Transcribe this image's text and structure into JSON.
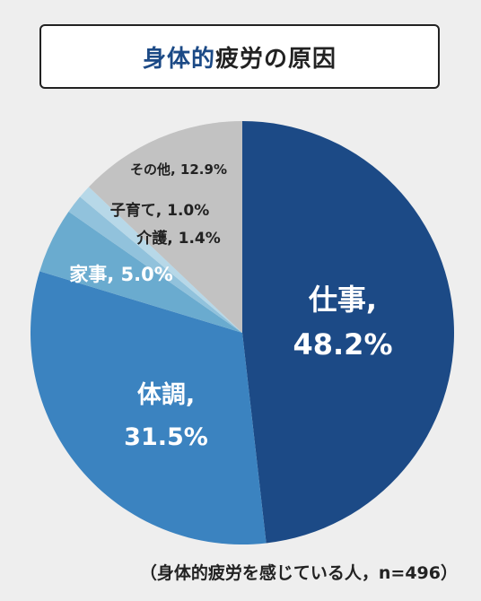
{
  "title": {
    "accent": "身体的",
    "rest": "疲労の原因"
  },
  "footnote": "（身体的疲労を感じている人，n=496）",
  "chart_data": {
    "type": "pie",
    "title": "身体的疲労の原因",
    "unit": "%",
    "start": "12 o'clock",
    "direction": "clockwise",
    "slices": [
      {
        "name": "仕事",
        "value": 48.2,
        "color": "#1c4a86",
        "label_lines": [
          "仕事,",
          "48.2%"
        ]
      },
      {
        "name": "体調",
        "value": 31.5,
        "color": "#3b83c0",
        "label_lines": [
          "体調,",
          "31.5%"
        ]
      },
      {
        "name": "家事",
        "value": 5.0,
        "color": "#6aabcf",
        "label_lines": [
          "家事, 5.0%"
        ]
      },
      {
        "name": "介護",
        "value": 1.4,
        "color": "#91c2dc",
        "label_lines": [
          "介護, 1.4%"
        ]
      },
      {
        "name": "子育て",
        "value": 1.0,
        "color": "#b7d8e8",
        "label_lines": [
          "子育て, 1.0%"
        ]
      },
      {
        "name": "その他",
        "value": 12.9,
        "color": "#c2c2c2",
        "label_lines": [
          "その他, 12.9%"
        ]
      }
    ]
  }
}
